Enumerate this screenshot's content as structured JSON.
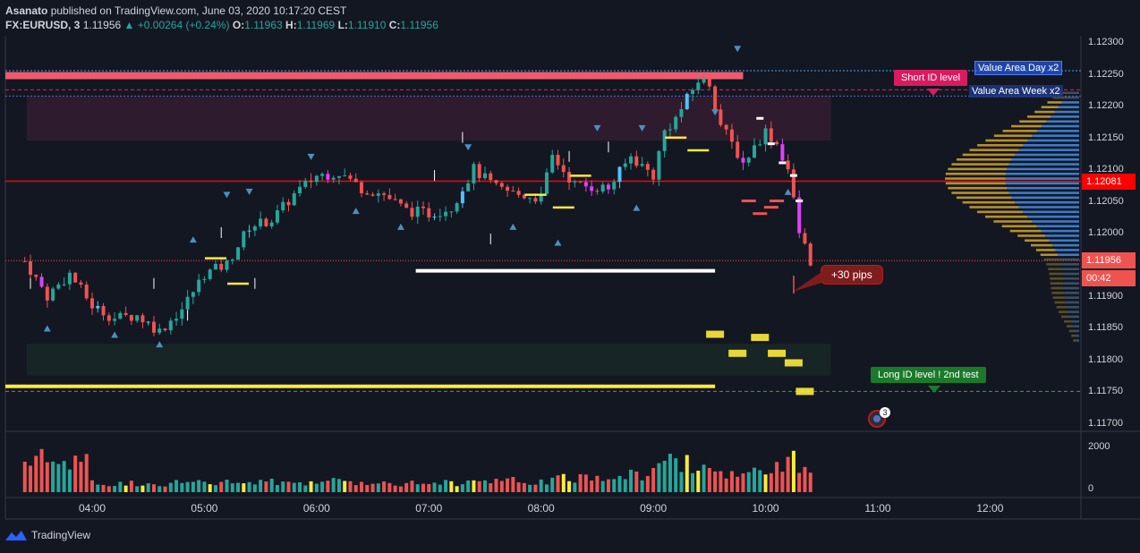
{
  "header": {
    "author": "Asanato",
    "published": "published on TradingView.com, June 03, 2020 10:17:20 CEST",
    "symbol": "FX:EURUSD, 3",
    "last": "1.11956",
    "change": "+0.00264 (+0.24%)",
    "o_label": "O:",
    "o": "1.11963",
    "h_label": "H:",
    "h": "1.11969",
    "l_label": "L:",
    "l": "1.11910",
    "c_label": "C:",
    "c": "1.11956"
  },
  "price_labels": [
    "1.12300",
    "1.12250",
    "1.12200",
    "1.12150",
    "1.12100",
    "1.12050",
    "1.12000",
    "1.11950",
    "1.11900",
    "1.11850",
    "1.11800",
    "1.11750",
    "1.11700"
  ],
  "price_tags": {
    "level": "1.12081",
    "last": "1.11956",
    "countdown": "00:42"
  },
  "volume_labels": [
    "2000",
    "0"
  ],
  "time_labels": [
    "04:00",
    "05:00",
    "06:00",
    "07:00",
    "08:00",
    "09:00",
    "10:00",
    "11:00",
    "12:00"
  ],
  "callouts": {
    "short": "Short ID level",
    "long": "Long ID level ! 2nd test",
    "pips": "+30 pips",
    "va_day": "Value Area Day x2",
    "va_week": "Value Area Week x2",
    "badge": "3"
  },
  "footer": {
    "brand": "TradingView"
  },
  "colors": {
    "bg": "#131722",
    "up": "#26a69a",
    "down": "#ef5350",
    "pink": "#e040fb",
    "level": "#ff0000",
    "yellow": "#ffeb3b"
  },
  "chart_data": {
    "type": "candlestick",
    "interval_minutes": 3,
    "ylim": [
      1.1169,
      1.1231
    ],
    "volume_ylim": [
      0,
      2600
    ],
    "levels": [
      {
        "name": "short_id_level",
        "y": 1.12225
      },
      {
        "name": "value_area_day",
        "y": 1.12255
      },
      {
        "name": "value_area_week",
        "y": 1.12215
      },
      {
        "name": "red_level",
        "y": 1.12081
      },
      {
        "name": "last_price",
        "y": 1.11956
      },
      {
        "name": "long_id_level",
        "y": 1.1175
      }
    ],
    "zones": [
      {
        "name": "supply",
        "x_from": "03:25",
        "x_to": "10:35",
        "y_from": 1.12145,
        "y_to": 1.12215
      },
      {
        "name": "demand",
        "x_from": "03:25",
        "x_to": "10:35",
        "y_from": 1.11775,
        "y_to": 1.11825
      }
    ],
    "close_path": [
      [
        "03:24",
        1.11955
      ],
      [
        "03:36",
        1.119
      ],
      [
        "03:48",
        1.11935
      ],
      [
        "04:00",
        1.11885
      ],
      [
        "04:12",
        1.11865
      ],
      [
        "04:24",
        1.1187
      ],
      [
        "04:36",
        1.11845
      ],
      [
        "04:48",
        1.1188
      ],
      [
        "05:00",
        1.11935
      ],
      [
        "05:12",
        1.1195
      ],
      [
        "05:24",
        1.1201
      ],
      [
        "05:36",
        1.1202
      ],
      [
        "05:48",
        1.1206
      ],
      [
        "06:00",
        1.1209
      ],
      [
        "06:12",
        1.12095
      ],
      [
        "06:24",
        1.1207
      ],
      [
        "06:36",
        1.1206
      ],
      [
        "06:48",
        1.12035
      ],
      [
        "07:00",
        1.1203
      ],
      [
        "07:12",
        1.1204
      ],
      [
        "07:24",
        1.121
      ],
      [
        "07:36",
        1.1207
      ],
      [
        "07:48",
        1.1206
      ],
      [
        "08:00",
        1.12055
      ],
      [
        "08:06",
        1.1212
      ],
      [
        "08:18",
        1.12075
      ],
      [
        "08:36",
        1.1207
      ],
      [
        "08:48",
        1.1212
      ],
      [
        "09:00",
        1.1209
      ],
      [
        "09:06",
        1.1216
      ],
      [
        "09:12",
        1.1218
      ],
      [
        "09:24",
        1.1224
      ],
      [
        "09:30",
        1.12235
      ],
      [
        "09:36",
        1.1217
      ],
      [
        "09:48",
        1.1211
      ],
      [
        "10:00",
        1.1216
      ],
      [
        "10:06",
        1.1214
      ],
      [
        "10:12",
        1.121
      ],
      [
        "10:18",
        1.12
      ],
      [
        "10:24",
        1.11956
      ]
    ],
    "volume": [
      [
        "04:00",
        400
      ],
      [
        "05:00",
        420
      ],
      [
        "06:00",
        480
      ],
      [
        "07:00",
        420
      ],
      [
        "08:00",
        520
      ],
      [
        "09:00",
        900
      ],
      [
        "09:12",
        1550
      ],
      [
        "09:30",
        1000
      ],
      [
        "10:00",
        850
      ],
      [
        "10:18",
        1450
      ]
    ]
  }
}
